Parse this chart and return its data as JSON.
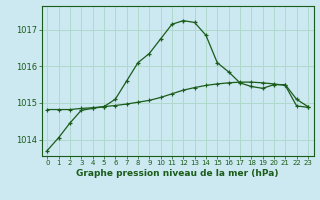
{
  "title": "Graphe pression niveau de la mer (hPa)",
  "bg_color": "#cce8f0",
  "grid_color": "#b0d8cc",
  "line_color": "#1a5c1a",
  "xlim": [
    -0.5,
    23.5
  ],
  "ylim": [
    1013.55,
    1017.65
  ],
  "yticks": [
    1014,
    1015,
    1016,
    1017
  ],
  "xticks": [
    0,
    1,
    2,
    3,
    4,
    5,
    6,
    7,
    8,
    9,
    10,
    11,
    12,
    13,
    14,
    15,
    16,
    17,
    18,
    19,
    20,
    21,
    22,
    23
  ],
  "hours": [
    0,
    1,
    2,
    3,
    4,
    5,
    6,
    7,
    8,
    9,
    10,
    11,
    12,
    13,
    14,
    15,
    16,
    17,
    18,
    19,
    20,
    21,
    22,
    23
  ],
  "line1": [
    1013.7,
    1014.05,
    1014.45,
    1014.8,
    1014.85,
    1014.9,
    1015.1,
    1015.6,
    1016.1,
    1016.35,
    1016.75,
    1017.15,
    1017.25,
    1017.2,
    1016.85,
    1016.1,
    1015.85,
    1015.55,
    1015.45,
    1015.4,
    1015.5,
    1015.5,
    1015.1,
    1014.9
  ],
  "line2": [
    1014.82,
    1014.82,
    1014.82,
    1014.85,
    1014.87,
    1014.9,
    1014.93,
    1014.97,
    1015.02,
    1015.07,
    1015.15,
    1015.25,
    1015.35,
    1015.42,
    1015.48,
    1015.52,
    1015.55,
    1015.57,
    1015.57,
    1015.55,
    1015.52,
    1015.48,
    1014.92,
    1014.88
  ]
}
